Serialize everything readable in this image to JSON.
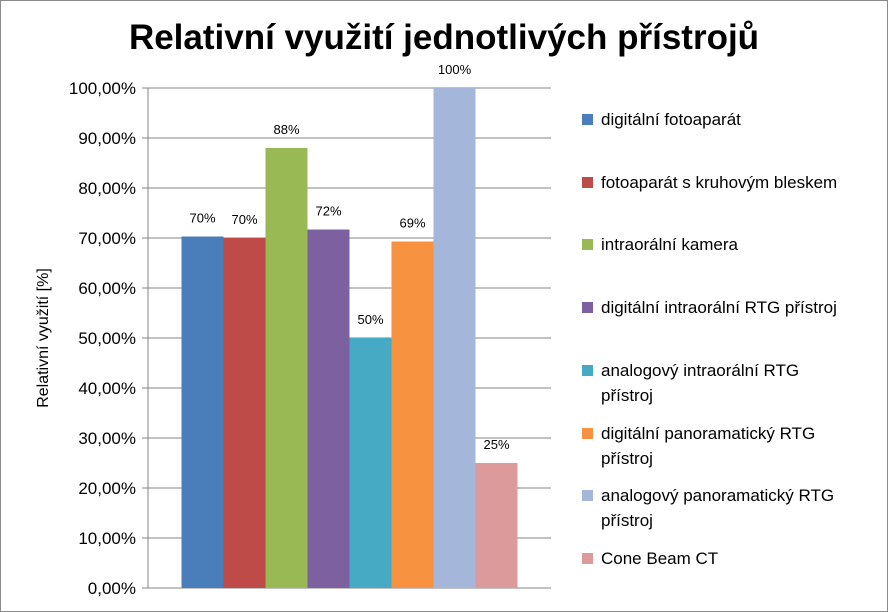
{
  "chart_data": {
    "type": "bar",
    "title": "Relativní využití jednotlivých přístrojů",
    "ylabel": "Relativní  využití [%]",
    "xlabel": "",
    "ylim": [
      0,
      100
    ],
    "yticks": [
      "0,00%",
      "10,00%",
      "20,00%",
      "30,00%",
      "40,00%",
      "50,00%",
      "60,00%",
      "70,00%",
      "80,00%",
      "90,00%",
      "100,00%"
    ],
    "grid": true,
    "legend_position": "right",
    "series": [
      {
        "name": "digitální fotoaparát",
        "value": 70.3,
        "label": "70%",
        "color": "#4a7ebb"
      },
      {
        "name": "fotoaparát s kruhovým bleskem",
        "value": 70,
        "label": "70%",
        "color": "#be4b48"
      },
      {
        "name": "intraorální kamera",
        "value": 88,
        "label": "88%",
        "color": "#98b954"
      },
      {
        "name": "digitální intraorální RTG přístroj",
        "value": 71.7,
        "label": "72%",
        "color": "#7d60a0"
      },
      {
        "name": "analogový intraorální RTG přístroj",
        "value": 50,
        "label": "50%",
        "color": "#46aac5"
      },
      {
        "name": "digitální panoramatický RTG přístroj",
        "value": 69.3,
        "label": "69%",
        "color": "#f69240"
      },
      {
        "name": "analogový panoramatický RTG přístroj",
        "value": 100,
        "label": "100%",
        "color": "#a4b6d9"
      },
      {
        "name": "Cone Beam CT",
        "value": 25,
        "label": "25%",
        "color": "#dc9b9a"
      }
    ]
  }
}
